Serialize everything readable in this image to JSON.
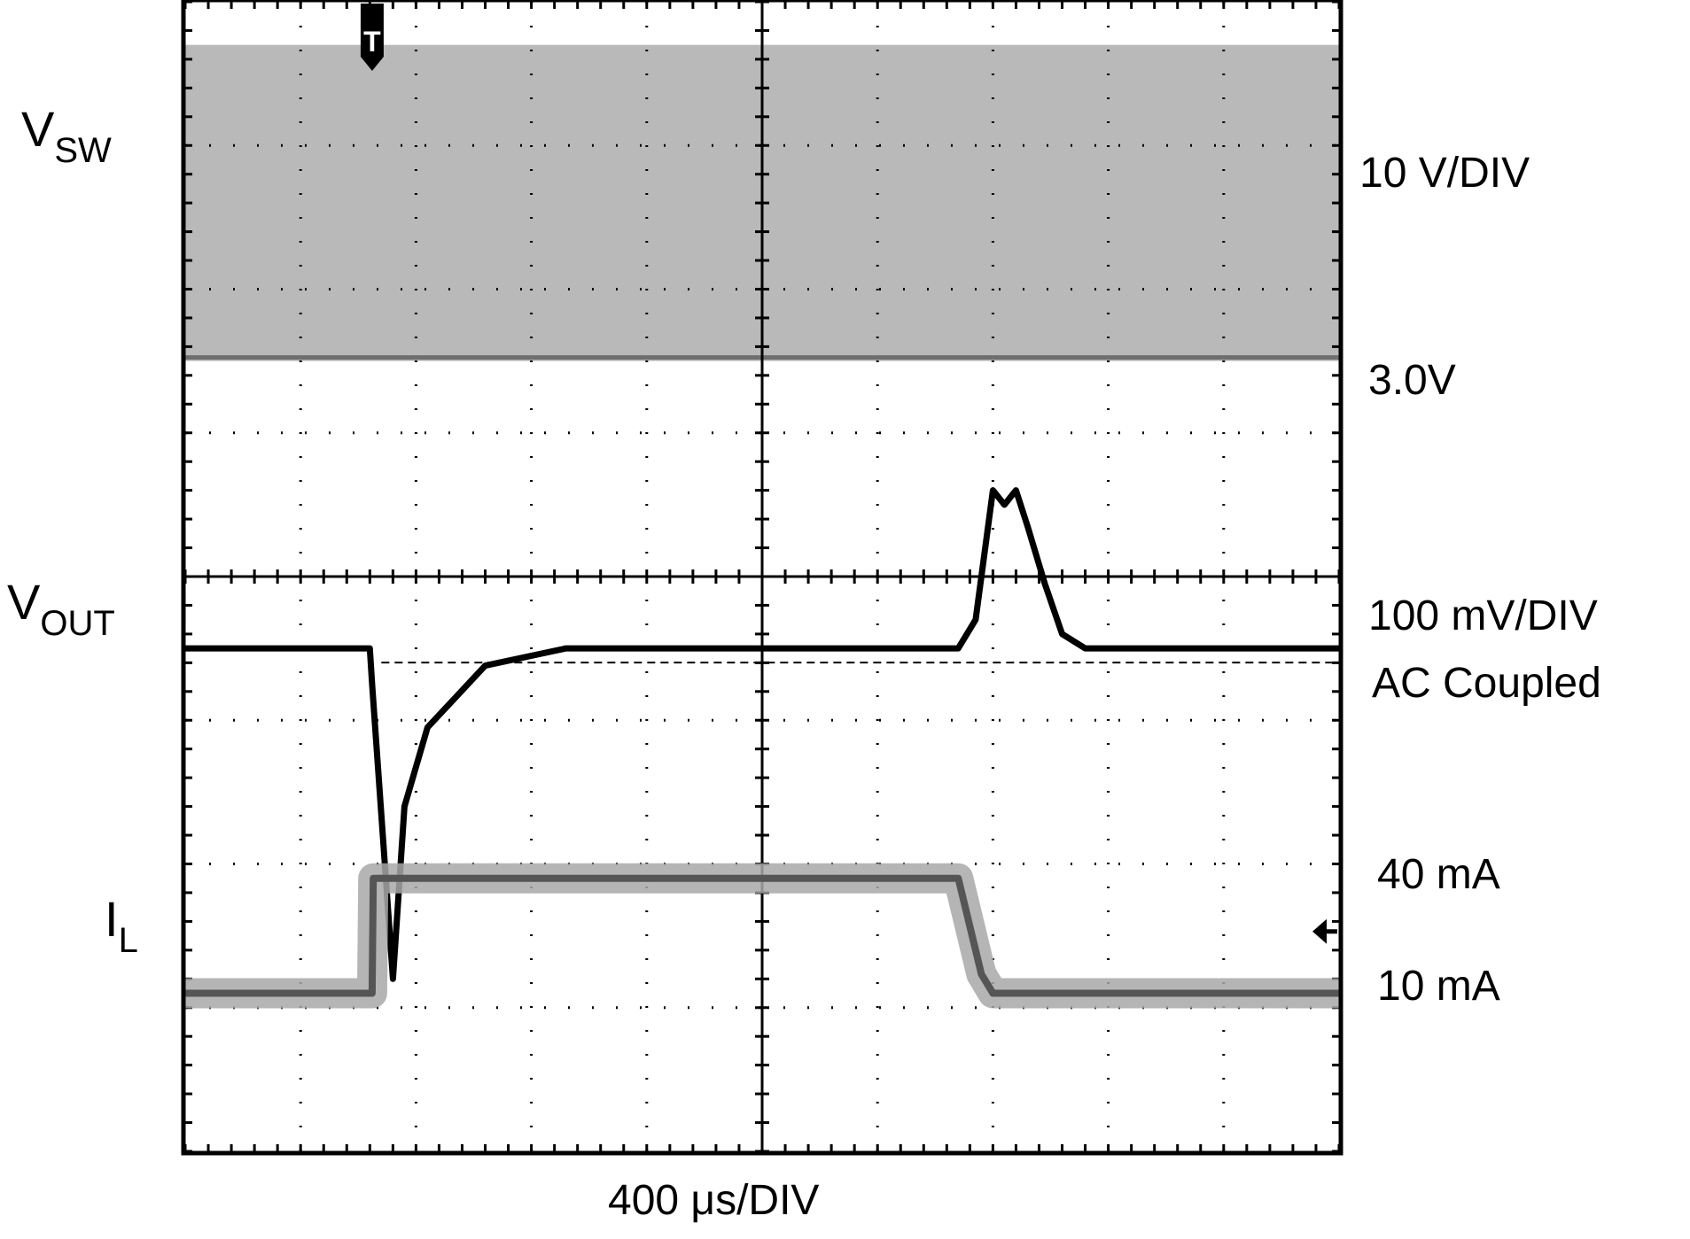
{
  "chart_data": {
    "type": "line",
    "title": "",
    "grid": true,
    "x_divisions": 10,
    "y_divisions": 8,
    "xlabel": "400 μs/DIV",
    "channels": [
      {
        "name_main": "V",
        "name_sub": "SW",
        "scale_label": "10 V/DIV",
        "color": "#b9b9b9",
        "band_top_div": 0.3,
        "band_bottom_div": 2.5
      },
      {
        "name_main": "V",
        "name_sub": "OUT",
        "scale_label_1": "100 mV/DIV",
        "scale_label_2": "AC Coupled",
        "level_label": "3.0V",
        "color": "#000000",
        "baseline_div": 4.5,
        "x_div": [
          0,
          1.6,
          1.62,
          1.8,
          1.9,
          2.1,
          2.6,
          3.3,
          6.7,
          6.85,
          7.0,
          7.1,
          7.2,
          7.3,
          7.45,
          7.6,
          7.8,
          8.3,
          10
        ],
        "y_div": [
          4.5,
          4.5,
          4.75,
          6.8,
          5.6,
          5.05,
          4.62,
          4.5,
          4.5,
          4.3,
          3.4,
          3.5,
          3.4,
          3.65,
          4.05,
          4.4,
          4.5,
          4.5,
          4.5
        ]
      },
      {
        "name_main": "I",
        "name_sub": "L",
        "color": "#555555",
        "levels": [
          {
            "label": "40 mA",
            "value_mA": 40
          },
          {
            "label": "10 mA",
            "value_mA": 10
          }
        ],
        "x_div": [
          0,
          1.62,
          1.63,
          6.7,
          6.9,
          7.0,
          10
        ],
        "y_mA": [
          10,
          10,
          40,
          40,
          15,
          10,
          10
        ]
      }
    ],
    "trigger_marker": "T",
    "trigger_x_div": 1.62
  }
}
